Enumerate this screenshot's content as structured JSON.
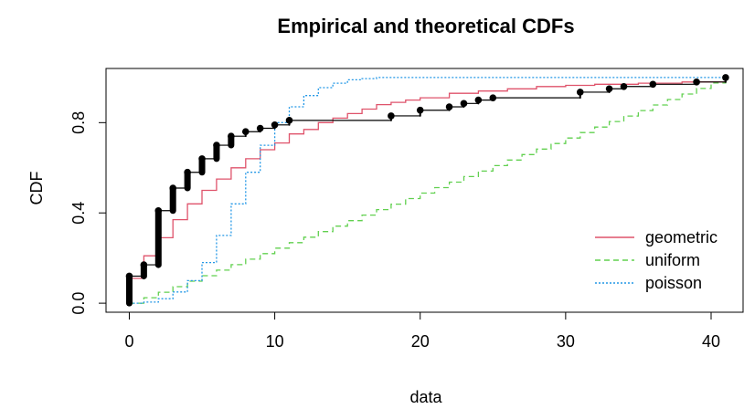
{
  "chart_data": {
    "type": "line",
    "title": "Empirical and theoretical CDFs",
    "xlabel": "data",
    "ylabel": "CDF",
    "xlim": [
      -1.6,
      42.2
    ],
    "ylim": [
      -0.04,
      1.04
    ],
    "x_ticks": [
      0,
      10,
      20,
      30,
      40
    ],
    "x_tick_labels": [
      "0",
      "10",
      "20",
      "30",
      "40"
    ],
    "y_ticks": [
      0.0,
      0.4,
      0.8
    ],
    "y_tick_labels": [
      "0.0",
      "0.4",
      "0.8"
    ],
    "grid": false,
    "legend_position": "bottom-right",
    "empirical": {
      "color": "#000000",
      "x": [
        0,
        1,
        2,
        3,
        4,
        5,
        6,
        7,
        8,
        9,
        10,
        11,
        18,
        20,
        22,
        23,
        24,
        25,
        31,
        33,
        34,
        36,
        39,
        41
      ],
      "y_before": [
        0.0,
        0.12,
        0.17,
        0.41,
        0.51,
        0.58,
        0.64,
        0.7,
        0.74,
        0.76,
        0.775,
        0.79,
        0.81,
        0.83,
        0.855,
        0.87,
        0.885,
        0.9,
        0.91,
        0.935,
        0.95,
        0.96,
        0.97,
        0.98
      ],
      "y_after": [
        0.12,
        0.17,
        0.41,
        0.51,
        0.58,
        0.64,
        0.7,
        0.74,
        0.76,
        0.775,
        0.79,
        0.81,
        0.83,
        0.855,
        0.87,
        0.885,
        0.9,
        0.91,
        0.935,
        0.95,
        0.96,
        0.97,
        0.98,
        1.0
      ]
    },
    "series": [
      {
        "name": "geometric",
        "color": "#DF536B",
        "dash": "",
        "x": [
          0,
          1,
          2,
          3,
          4,
          5,
          6,
          7,
          8,
          9,
          10,
          11,
          12,
          13,
          14,
          15,
          16,
          17,
          18,
          19,
          20,
          22,
          24,
          26,
          28,
          30,
          32,
          35,
          38,
          41
        ],
        "y": [
          0.11,
          0.21,
          0.29,
          0.37,
          0.44,
          0.5,
          0.55,
          0.6,
          0.64,
          0.68,
          0.71,
          0.75,
          0.77,
          0.8,
          0.82,
          0.84,
          0.86,
          0.88,
          0.89,
          0.9,
          0.91,
          0.93,
          0.94,
          0.95,
          0.96,
          0.965,
          0.97,
          0.975,
          0.98,
          0.985
        ]
      },
      {
        "name": "uniform",
        "color": "#61D04F",
        "dash": "6,4",
        "x": [
          0,
          41
        ],
        "y": [
          0.0,
          1.0
        ],
        "steps_every": 1
      },
      {
        "name": "poisson",
        "color": "#2297E6",
        "dash": "2,2",
        "x": [
          0,
          1,
          2,
          3,
          4,
          5,
          6,
          7,
          8,
          9,
          10,
          11,
          12,
          13,
          14,
          15,
          16,
          17,
          18,
          41
        ],
        "y": [
          0.0,
          0.005,
          0.02,
          0.05,
          0.1,
          0.18,
          0.3,
          0.44,
          0.58,
          0.7,
          0.8,
          0.87,
          0.92,
          0.955,
          0.975,
          0.99,
          0.995,
          1.0,
          1.0,
          1.0
        ]
      }
    ]
  }
}
